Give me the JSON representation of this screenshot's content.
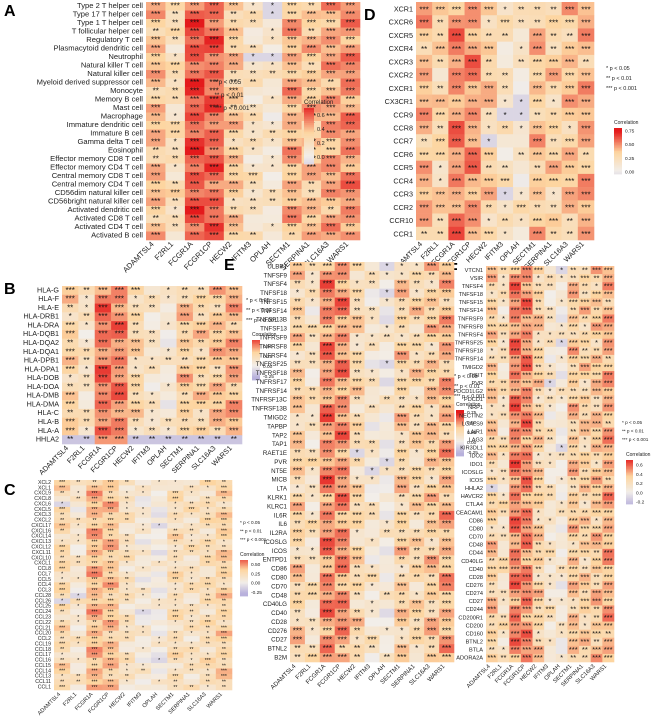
{
  "legend_text": {
    "p05": "* p < 0.05",
    "p01": "** p < 0.01",
    "p001": "*** p < 0.001",
    "corr": "Correlation"
  },
  "colors": {
    "high": "#e41a1c",
    "mid": "#fdd5a0",
    "zero": "#f2eee9",
    "low": "#b8b1dc"
  },
  "chart_data": [
    {
      "panel": "A",
      "type": "heatmap",
      "rows": [
        "Type 2 T helper cell",
        "Type 17 T helper cell",
        "Type 1 T helper cell",
        "T follicular helper cell",
        "Regulatory T cell",
        "Plasmacytoid dendritic cell",
        "Neutrophil",
        "Natural killer T cell",
        "Natural killer cell",
        "Myeloid derived suppressor cell",
        "Monocyte",
        "Memory B cell",
        "Mast cell",
        "Macrophage",
        "Immature dendritic cell",
        "Immature B cell",
        "Gamma delta T cell",
        "Eosinophil",
        "Effector memory CD8 T cell",
        "Effector memory CD4 T cell",
        "Central memory CD8 T cell",
        "Central memory CD4 T cell",
        "CD56dim natural killer cell",
        "CD56bright natural killer cell",
        "Activated dendritic cell",
        "Activated CD8 T cell",
        "Activated CD4 T cell",
        "Activated B cell"
      ],
      "cols": [
        "ADAMTSL4",
        "F2RL1",
        "FCGR1A",
        "FCGR1CP",
        "HECW2",
        "IFITM3",
        "OPLAH",
        "SECTM1",
        "SERPINA1",
        "SLC16A3",
        "WARS1"
      ],
      "legend": {
        "ticks": [
          "0.6",
          "0.4",
          "0.2",
          "0.0"
        ],
        "min": -0.1,
        "max": 0.7
      },
      "pattern": {
        "base": [
          0.38,
          0.22,
          0.62,
          0.58,
          0.34,
          0.18,
          0.12,
          0.42,
          0.36,
          0.44,
          0.5
        ],
        "range": 0.2,
        "weak": [
          [
            0,
            6
          ],
          [
            1,
            6
          ],
          [
            6,
            5
          ],
          [
            6,
            6
          ]
        ]
      }
    },
    {
      "panel": "D",
      "type": "heatmap",
      "rows": [
        "XCR1",
        "CXCR6",
        "CXCR5",
        "CXCR4",
        "CXCR3",
        "CXCR2",
        "CXCR1",
        "CX3CR1",
        "CCR9",
        "CCR8",
        "CCR7",
        "CCR6",
        "CCR5",
        "CCR4",
        "CCR3",
        "CCR2",
        "CCR10",
        "CCR1"
      ],
      "cols": [
        "ADAMTSL4",
        "F2RL1",
        "FCGR1A",
        "FCGR1CP",
        "HECW2",
        "IFITM3",
        "OPLAH",
        "SECTM1",
        "SERPINA1",
        "SLC16A3",
        "WARS1"
      ],
      "legend": {
        "ticks": [
          "0.75",
          "0.50",
          "0.25",
          "0.00"
        ],
        "min": -0.05,
        "max": 0.8
      },
      "pattern": {
        "base": [
          0.4,
          0.28,
          0.5,
          0.48,
          0.32,
          0.18,
          0.14,
          0.36,
          0.3,
          0.36,
          0.42
        ],
        "range": 0.22,
        "weak": [
          [
            8,
            5
          ],
          [
            8,
            6
          ],
          [
            7,
            6
          ],
          [
            10,
            4
          ],
          [
            14,
            5
          ]
        ]
      }
    },
    {
      "panel": "B",
      "type": "heatmap",
      "rows": [
        "HLA-G",
        "HLA-F",
        "HLA-E",
        "HLA-DRB1",
        "HLA-DRA",
        "HLA-DQB1",
        "HLA-DQA2",
        "HLA-DQA1",
        "HLA-DPB1",
        "HLA-DPA1",
        "HLA-DOB",
        "HLA-DOA",
        "HLA-DMB",
        "HLA-DMA",
        "HLA-C",
        "HLA-B",
        "HLA-A",
        "HHLA2"
      ],
      "cols": [
        "ADAMTSL4",
        "F2RL1",
        "FCGR1A",
        "FCGR1CP",
        "HECW2",
        "IFITM3",
        "OPLAH",
        "SECTM1",
        "SERPINA1",
        "SLC16A3",
        "WARS1"
      ],
      "legend": {
        "ticks": [
          "0.50",
          "0.25",
          "0.00",
          "-0.25"
        ],
        "min": -0.35,
        "max": 0.65
      },
      "pattern": {
        "base": [
          0.3,
          0.16,
          0.55,
          0.52,
          0.28,
          0.14,
          0.08,
          0.34,
          0.3,
          0.36,
          0.42
        ],
        "range": 0.2,
        "neg_row": 17
      }
    },
    {
      "panel": "E",
      "type": "heatmap",
      "rows": [
        "ULBP1",
        "TNFSF9",
        "TNFSF4",
        "TNFSF18",
        "TNFSF15",
        "TNFSF14",
        "TNFSF13B",
        "TNFSF13",
        "TNFRSF9",
        "TNFRSF8",
        "TNFRSF4",
        "TNFRSF25",
        "TNFRSF18",
        "TNFRSF17",
        "TNFRSF14",
        "TNFRSF13C",
        "TNFRSF13B",
        "TMIGD2",
        "TAPBP",
        "TAP2",
        "TAP1",
        "RAET1E",
        "PVR",
        "NT5E",
        "MICB",
        "LTA",
        "KLRK1",
        "KLRC1",
        "IL6R",
        "IL6",
        "IL2RA",
        "ICOSLG",
        "ICOS",
        "ENTPD1",
        "CD86",
        "CD80",
        "CD70",
        "CD48",
        "CD40LG",
        "CD40",
        "CD28",
        "CD276",
        "CD27",
        "BTNL2",
        "B2M"
      ],
      "cols": [
        "ADAMTSL4",
        "F2RL1",
        "FCGR1A",
        "FCGR1CP",
        "HECW2",
        "IFITM3",
        "OPLAH",
        "SECTM1",
        "SERPINA1",
        "SLC16A3",
        "WARS1"
      ],
      "legend": {
        "ticks": [
          "0.75",
          "0.50",
          "0.25",
          "0.00",
          "-0.25"
        ],
        "min": -0.35,
        "max": 0.8
      },
      "pattern": {
        "base": [
          0.3,
          0.16,
          0.5,
          0.48,
          0.26,
          0.12,
          0.06,
          0.3,
          0.26,
          0.32,
          0.4
        ],
        "range": 0.24,
        "weak": [
          [
            0,
            6
          ],
          [
            3,
            6
          ],
          [
            11,
            6
          ],
          [
            21,
            4
          ],
          [
            22,
            6
          ],
          [
            23,
            5
          ]
        ]
      }
    },
    {
      "panel": "C",
      "type": "heatmap",
      "rows": [
        "XCL2",
        "XCL1",
        "CXCL9",
        "CXCL8",
        "CXCL6",
        "CXCL5",
        "CXCL3",
        "CXCL2",
        "CXCL17",
        "CXCL16",
        "CXCL14",
        "CXCL13",
        "CXCL12",
        "CXCL11",
        "CXCL10",
        "CXCL1",
        "CCL8",
        "CCL7",
        "CCL5",
        "CCL4",
        "CCL3",
        "CCL28",
        "CCL26",
        "CCL25",
        "CCL24",
        "CCL23",
        "CCL22",
        "CCL21",
        "CCL20",
        "CCL2",
        "CCL19",
        "CCL18",
        "CCL17",
        "CCL16",
        "CCL15",
        "CCL14",
        "CCL13",
        "CCL11",
        "CCL1"
      ],
      "cols": [
        "ADAMTSL4",
        "F2RL1",
        "FCGR1A",
        "FCGR1CP",
        "HECW2",
        "IFITM3",
        "OPLAH",
        "SECTM1",
        "SERPINA1",
        "SLC16A3",
        "WARS1"
      ],
      "legend": {
        "ticks": [
          "0.50",
          "0.25",
          "0.00",
          "-0.25"
        ],
        "min": -0.35,
        "max": 0.6
      },
      "pattern": {
        "base": [
          0.26,
          0.12,
          0.4,
          0.36,
          0.18,
          0.08,
          0.04,
          0.22,
          0.18,
          0.22,
          0.3
        ],
        "range": 0.2,
        "weak": [
          [
            4,
            0
          ],
          [
            8,
            6
          ],
          [
            21,
            1
          ],
          [
            22,
            0
          ],
          [
            24,
            5
          ],
          [
            33,
            6
          ]
        ]
      }
    },
    {
      "panel": "F",
      "type": "heatmap",
      "rows": [
        "VTCN1",
        "VSIR",
        "TNFSF4",
        "TNFSF18",
        "TNFSF15",
        "TNFSF14",
        "TNFRSF9",
        "TNFRSF8",
        "TNFRSF4",
        "TNFRSF25",
        "TNFRSF18",
        "TNFRSF14",
        "TMIGD2",
        "TIGIT",
        "PVR",
        "PDCD1LG2",
        "PDCD1",
        "NRP1",
        "NECTIN2",
        "LGALS9",
        "LAIR1",
        "LAG3",
        "KIR3DL1",
        "IDO2",
        "IDO1",
        "ICOSLG",
        "ICOS",
        "HHLA2",
        "HAVCR2",
        "CTLA4",
        "CEACAM1",
        "CD86",
        "CD80",
        "CD70",
        "CD48",
        "CD44",
        "CD40LG",
        "CD40",
        "CD28",
        "CD276",
        "CD274",
        "CD27",
        "CD244",
        "CD200R1",
        "CD200",
        "CD160",
        "BTNL2",
        "BTLA",
        "ADORA2A"
      ],
      "cols": [
        "ADAMTSL4",
        "F2RL1",
        "FCGR1A",
        "FCGR1CP",
        "HECW2",
        "IFITM3",
        "OPLAH",
        "SECTM1",
        "SERPINA1",
        "SLC16A3",
        "WARS1"
      ],
      "legend": {
        "ticks": [
          "0.6",
          "0.4",
          "0.2",
          "0.0",
          "-0.2"
        ],
        "min": -0.25,
        "max": 0.7
      },
      "pattern": {
        "base": [
          0.32,
          0.18,
          0.52,
          0.5,
          0.3,
          0.14,
          0.08,
          0.34,
          0.3,
          0.34,
          0.42
        ],
        "range": 0.22,
        "weak": [
          [
            0,
            6
          ],
          [
            9,
            6
          ],
          [
            14,
            5
          ],
          [
            22,
            6
          ],
          [
            27,
            0
          ]
        ]
      }
    }
  ]
}
